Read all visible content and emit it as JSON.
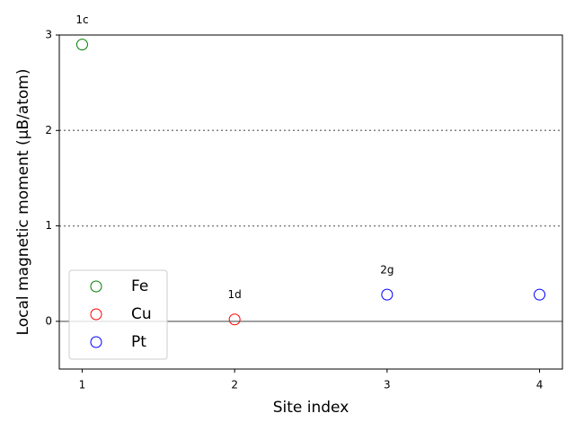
{
  "chart_data": {
    "type": "scatter",
    "xlabel": "Site index",
    "ylabel": "Local magnetic moment (μB/atom)",
    "xlim": [
      0.85,
      4.15
    ],
    "ylim": [
      -0.5,
      3
    ],
    "xticks": [
      1,
      2,
      3,
      4
    ],
    "yticks": [
      0,
      1,
      2,
      3
    ],
    "hlines": [
      {
        "value": 0,
        "style": "solid"
      },
      {
        "value": 1,
        "style": "dotted"
      },
      {
        "value": 2,
        "style": "dotted"
      }
    ],
    "legend": "lower left",
    "series": [
      {
        "name": "Fe",
        "color": "green",
        "x": [
          1
        ],
        "values": [
          2.9
        ],
        "labels": [
          "1c"
        ]
      },
      {
        "name": "Cu",
        "color": "red",
        "x": [
          2
        ],
        "values": [
          0.02
        ],
        "labels": [
          "1d"
        ]
      },
      {
        "name": "Pt",
        "color": "blue",
        "x": [
          3,
          4
        ],
        "values": [
          0.28,
          0.28
        ],
        "labels": [
          "2g",
          null
        ]
      }
    ]
  }
}
